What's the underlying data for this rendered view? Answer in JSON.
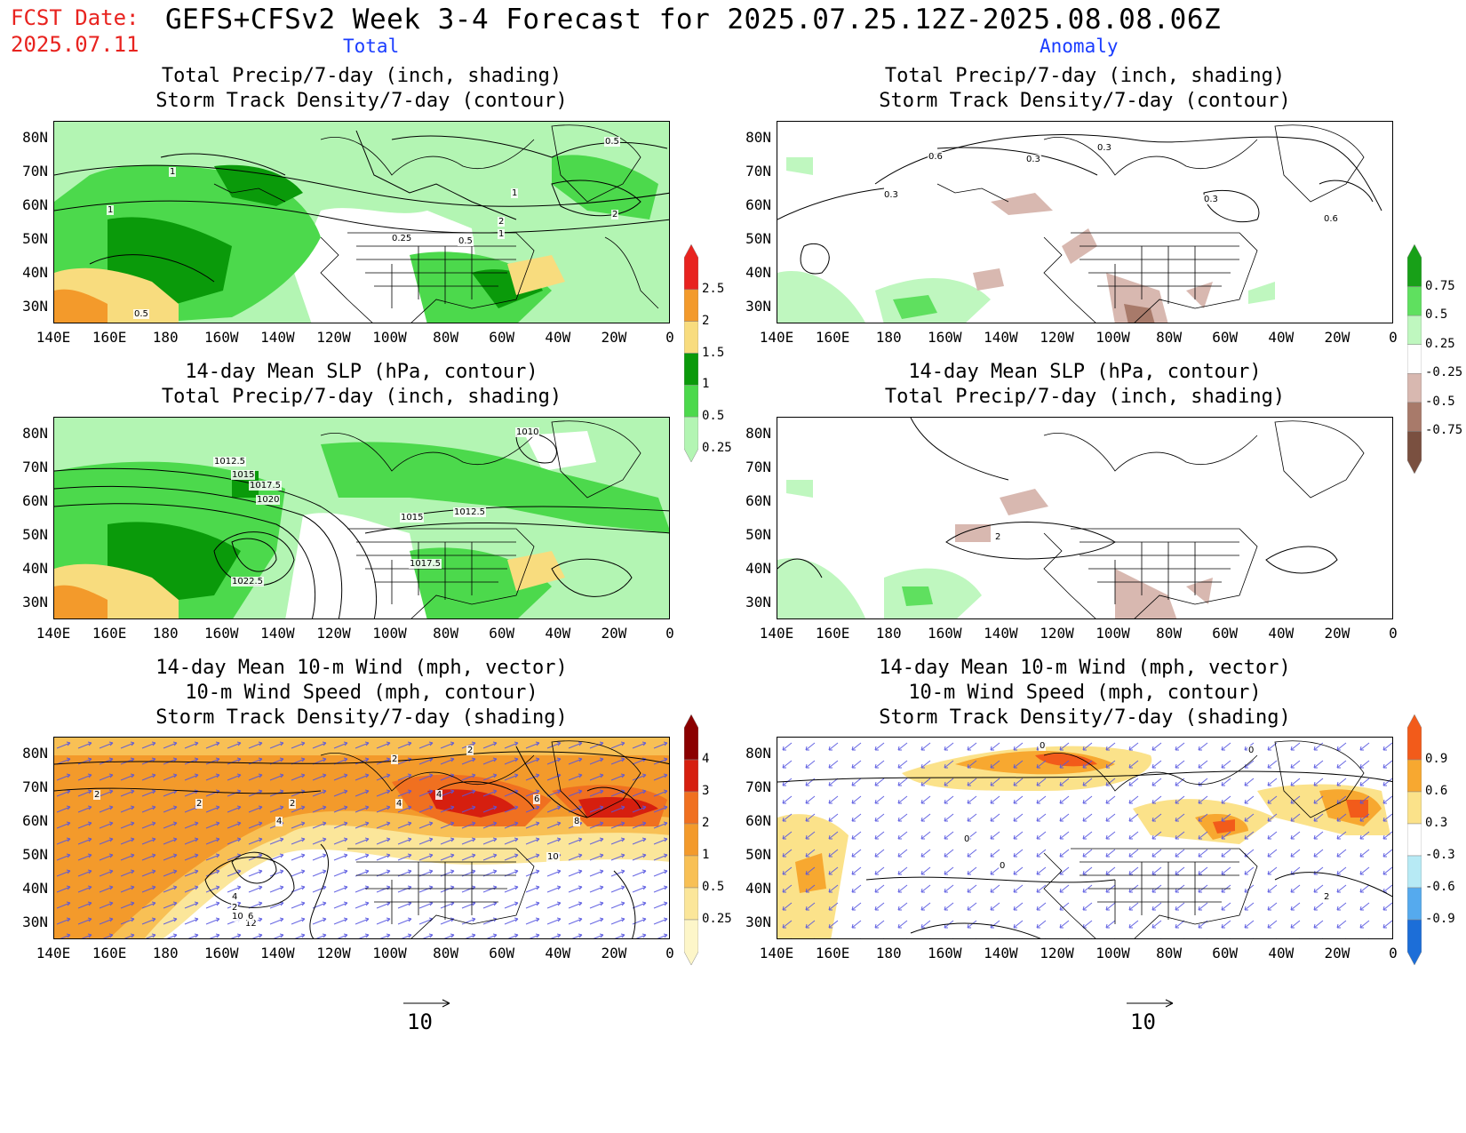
{
  "header": {
    "fcst_label": "FCST Date:",
    "fcst_date": "2025.07.11",
    "title": "GEFS+CFSv2 Week 3-4 Forecast for 2025.07.25.12Z-2025.08.08.06Z",
    "col_total": "Total",
    "col_anomaly": "Anomaly"
  },
  "panels": {
    "p1": {
      "line1": "Total Precip/7-day (inch, shading)",
      "line2": "Storm Track Density/7-day (contour)"
    },
    "p2": {
      "line1": "Total Precip/7-day (inch, shading)",
      "line2": "Storm Track Density/7-day (contour)"
    },
    "p3": {
      "line1": "14-day Mean SLP (hPa, contour)",
      "line2": "Total Precip/7-day (inch, shading)"
    },
    "p4": {
      "line1": "14-day Mean SLP (hPa, contour)",
      "line2": "Total Precip/7-day (inch, shading)"
    },
    "p5": {
      "line1": "14-day Mean 10-m Wind (mph, vector)",
      "line2": "10-m Wind Speed (mph, contour)",
      "line3": "Storm Track Density/7-day (shading)"
    },
    "p6": {
      "line1": "14-day Mean 10-m Wind (mph, vector)",
      "line2": "10-m Wind Speed (mph, contour)",
      "line3": "Storm Track Density/7-day (shading)"
    }
  },
  "axes": {
    "lat_labels": [
      "80N",
      "70N",
      "60N",
      "50N",
      "40N",
      "30N"
    ],
    "lon_labels": [
      "140E",
      "160E",
      "180",
      "160W",
      "140W",
      "120W",
      "100W",
      "80W",
      "60W",
      "40W",
      "20W",
      "0"
    ]
  },
  "colorbars": {
    "precip_total": {
      "labels": [
        "2.5",
        "2",
        "1.5",
        "1",
        "0.5",
        "0.25"
      ],
      "colors": [
        "#e8231f",
        "#f39a2b",
        "#f8dc7e",
        "#0a9a0a",
        "#4cd94c",
        "#b3f5b3"
      ]
    },
    "precip_anom": {
      "labels": [
        "0.75",
        "0.5",
        "0.25",
        "-0.25",
        "-0.5",
        "-0.75"
      ],
      "colors": [
        "#18a018",
        "#5fe05f",
        "#bff7bf",
        "#ffffff",
        "#d8b8b0",
        "#a87a6a",
        "#7a5040"
      ]
    },
    "storm_total": {
      "labels": [
        "4",
        "3",
        "2",
        "1",
        "0.5",
        "0.25"
      ],
      "colors": [
        "#8b0000",
        "#d61f0f",
        "#f07020",
        "#f39a2b",
        "#f8c055",
        "#fbe69a",
        "#fdf6c9"
      ]
    },
    "storm_anom": {
      "labels": [
        "0.9",
        "0.6",
        "0.3",
        "-0.3",
        "-0.6",
        "-0.9"
      ],
      "colors": [
        "#f25b1a",
        "#f7a830",
        "#fbe28a",
        "#ffffff",
        "#b7eaf5",
        "#55aaee",
        "#1c6ed8"
      ]
    }
  },
  "contour_labels": {
    "p1": [
      "0.5",
      "1",
      "1",
      "1",
      "2",
      "1",
      "2",
      "0.25",
      "0.5",
      "0.5"
    ],
    "p2": [
      "0.3",
      "0.6",
      "0.3",
      "0.3",
      "0.3",
      "0.6"
    ],
    "p3": [
      "1010",
      "1012.5",
      "1015",
      "1017.5",
      "1020",
      "1015",
      "1012.5",
      "1017.5",
      "1022.5"
    ],
    "p4": [
      "2"
    ],
    "p5": [
      "2",
      "2",
      "2",
      "4",
      "2",
      "2",
      "4",
      "4",
      "6",
      "8",
      "10",
      "2",
      "4",
      "10",
      "12",
      "6"
    ],
    "p6": [
      "0",
      "0",
      "0",
      "0",
      "2"
    ]
  },
  "vector_ref": {
    "p5": "10",
    "p6": "10"
  }
}
